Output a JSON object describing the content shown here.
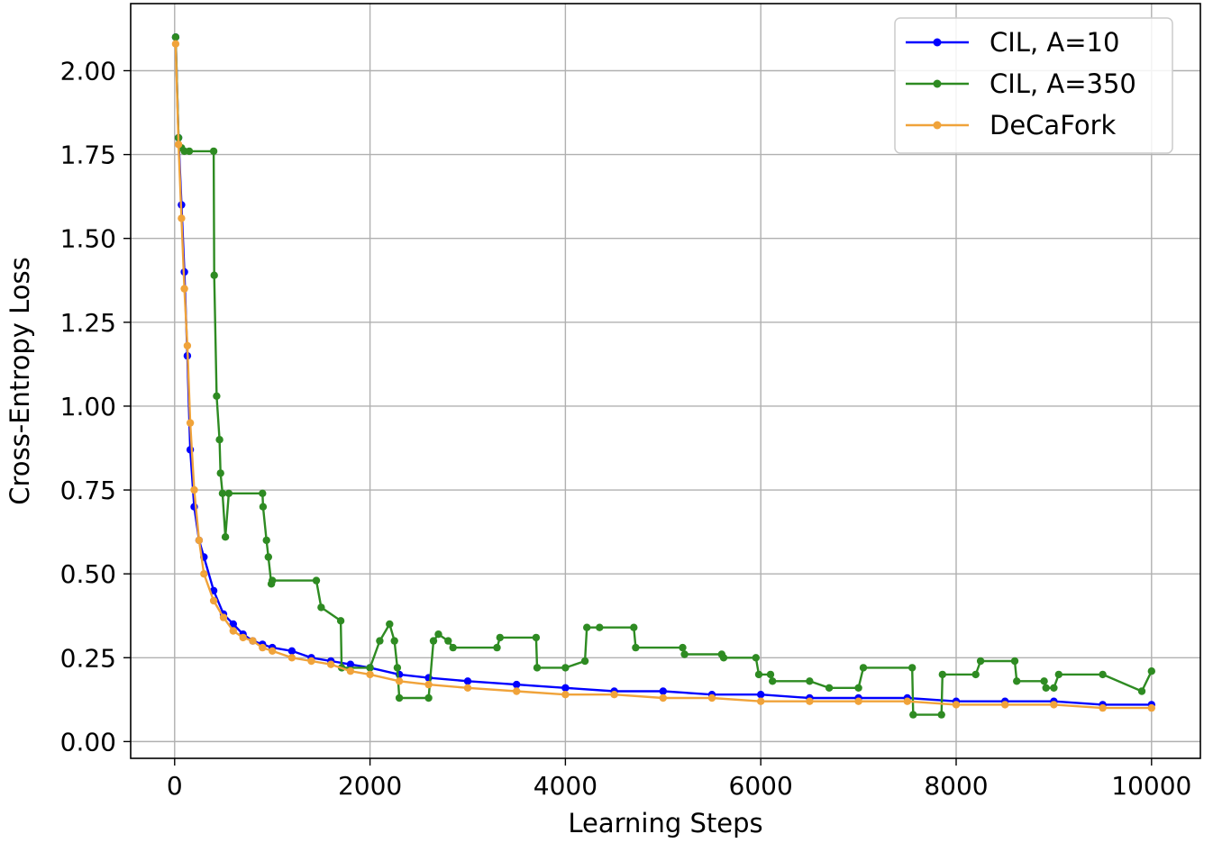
{
  "chart_data": {
    "type": "line",
    "title": "",
    "xlabel": "Learning Steps",
    "ylabel": "Cross-Entropy Loss",
    "xlim": [
      -450,
      10500
    ],
    "ylim": [
      -0.05,
      2.2
    ],
    "xticks": [
      0,
      2000,
      4000,
      6000,
      8000,
      10000
    ],
    "xtick_labels": [
      "0",
      "2000",
      "4000",
      "6000",
      "8000",
      "10000"
    ],
    "yticks": [
      0.0,
      0.25,
      0.5,
      0.75,
      1.0,
      1.25,
      1.5,
      1.75,
      2.0
    ],
    "ytick_labels": [
      "0.00",
      "0.25",
      "0.50",
      "0.75",
      "1.00",
      "1.25",
      "1.50",
      "1.75",
      "2.00"
    ],
    "grid": true,
    "legend": "top-right",
    "series": [
      {
        "name": "CIL, A=10",
        "color": "#0000ff",
        "marker": "circle",
        "x": [
          10,
          40,
          70,
          100,
          130,
          160,
          200,
          250,
          300,
          400,
          500,
          600,
          700,
          800,
          900,
          1000,
          1200,
          1400,
          1600,
          1800,
          2000,
          2300,
          2600,
          3000,
          3500,
          4000,
          4500,
          5000,
          5500,
          6000,
          6500,
          7000,
          7500,
          8000,
          8500,
          9000,
          9500,
          10000
        ],
        "y": [
          2.1,
          1.8,
          1.6,
          1.4,
          1.15,
          0.87,
          0.7,
          0.6,
          0.55,
          0.45,
          0.38,
          0.35,
          0.32,
          0.3,
          0.29,
          0.28,
          0.27,
          0.25,
          0.24,
          0.23,
          0.22,
          0.2,
          0.19,
          0.18,
          0.17,
          0.16,
          0.15,
          0.15,
          0.14,
          0.14,
          0.13,
          0.13,
          0.13,
          0.12,
          0.12,
          0.12,
          0.11,
          0.11
        ]
      },
      {
        "name": "CIL, A=350",
        "color": "#2e8b22",
        "marker": "circle",
        "x": [
          10,
          40,
          70,
          100,
          150,
          400,
          405,
          430,
          460,
          470,
          490,
          520,
          555,
          900,
          905,
          940,
          960,
          990,
          1000,
          1450,
          1500,
          1700,
          1710,
          2000,
          2100,
          2200,
          2250,
          2280,
          2300,
          2600,
          2650,
          2700,
          2800,
          2850,
          3300,
          3330,
          3700,
          3710,
          4000,
          4200,
          4220,
          4350,
          4700,
          4720,
          5200,
          5220,
          5600,
          5620,
          5950,
          5980,
          6100,
          6120,
          6500,
          6700,
          7000,
          7050,
          7550,
          7560,
          7850,
          7860,
          8200,
          8250,
          8600,
          8620,
          8900,
          8920,
          9000,
          9050,
          9500,
          9900,
          10000
        ],
        "y": [
          2.1,
          1.8,
          1.77,
          1.76,
          1.76,
          1.76,
          1.39,
          1.03,
          0.9,
          0.8,
          0.74,
          0.61,
          0.74,
          0.74,
          0.7,
          0.6,
          0.55,
          0.47,
          0.48,
          0.48,
          0.4,
          0.36,
          0.22,
          0.22,
          0.3,
          0.35,
          0.3,
          0.22,
          0.13,
          0.13,
          0.3,
          0.32,
          0.3,
          0.28,
          0.28,
          0.31,
          0.31,
          0.22,
          0.22,
          0.24,
          0.34,
          0.34,
          0.34,
          0.28,
          0.28,
          0.26,
          0.26,
          0.25,
          0.25,
          0.2,
          0.2,
          0.18,
          0.18,
          0.16,
          0.16,
          0.22,
          0.22,
          0.08,
          0.08,
          0.2,
          0.2,
          0.24,
          0.24,
          0.18,
          0.18,
          0.16,
          0.16,
          0.2,
          0.2,
          0.15,
          0.21
        ]
      },
      {
        "name": "DeCaFork",
        "color": "#f0a33a",
        "marker": "circle",
        "x": [
          10,
          40,
          70,
          100,
          130,
          160,
          200,
          250,
          300,
          400,
          500,
          600,
          700,
          800,
          900,
          1000,
          1200,
          1400,
          1600,
          1800,
          2000,
          2300,
          2600,
          3000,
          3500,
          4000,
          4500,
          5000,
          5500,
          6000,
          6500,
          7000,
          7500,
          8000,
          8500,
          9000,
          9500,
          10000
        ],
        "y": [
          2.08,
          1.78,
          1.56,
          1.35,
          1.18,
          0.95,
          0.75,
          0.6,
          0.5,
          0.42,
          0.37,
          0.33,
          0.31,
          0.3,
          0.28,
          0.27,
          0.25,
          0.24,
          0.23,
          0.21,
          0.2,
          0.18,
          0.17,
          0.16,
          0.15,
          0.14,
          0.14,
          0.13,
          0.13,
          0.12,
          0.12,
          0.12,
          0.12,
          0.11,
          0.11,
          0.11,
          0.1,
          0.1
        ]
      }
    ]
  }
}
